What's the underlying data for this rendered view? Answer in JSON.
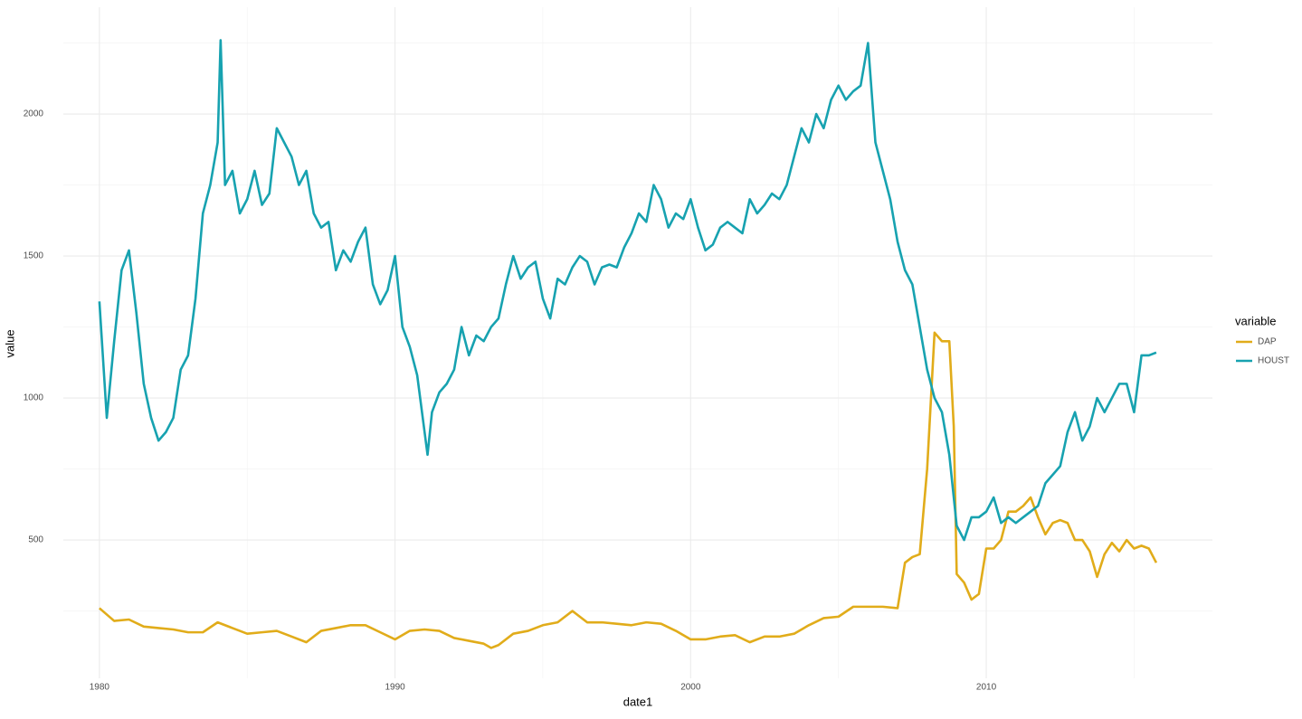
{
  "chart_data": {
    "type": "line",
    "x_label": "date1",
    "y_label": "value",
    "legend_title": "variable",
    "xlim": [
      1978.78,
      2017.65
    ],
    "ylim": [
      13,
      2376
    ],
    "xticks": [
      1980,
      1990,
      2000,
      2010
    ],
    "yticks": [
      500,
      1000,
      1500,
      2000
    ],
    "xminor": [
      1985,
      1995,
      2005,
      2015
    ],
    "yminor": [
      250,
      750,
      1250,
      1750,
      2250
    ],
    "grid": true,
    "legend": "right",
    "series": [
      {
        "name": "DAP",
        "color": "#e1ac1a",
        "x": [
          1980,
          1980.5,
          1981,
          1981.5,
          1982,
          1982.5,
          1983,
          1983.5,
          1984,
          1984.5,
          1985,
          1985.5,
          1986,
          1986.5,
          1987,
          1987.5,
          1988,
          1988.5,
          1989,
          1989.5,
          1990,
          1990.5,
          1991,
          1991.5,
          1992,
          1992.5,
          1993,
          1993.25,
          1993.5,
          1994,
          1994.5,
          1995,
          1995.5,
          1996,
          1996.5,
          1997,
          1997.5,
          1998,
          1998.5,
          1999,
          1999.5,
          2000,
          2000.5,
          2001,
          2001.5,
          2002,
          2002.5,
          2003,
          2003.5,
          2004,
          2004.5,
          2005,
          2005.5,
          2006,
          2006.5,
          2007,
          2007.25,
          2007.5,
          2007.75,
          2008,
          2008.25,
          2008.5,
          2008.75,
          2008.9,
          2009,
          2009.25,
          2009.5,
          2009.75,
          2010,
          2010.25,
          2010.5,
          2010.75,
          2011,
          2011.25,
          2011.5,
          2011.75,
          2012,
          2012.25,
          2012.5,
          2012.75,
          2013,
          2013.25,
          2013.5,
          2013.75,
          2014,
          2014.25,
          2014.5,
          2014.75,
          2015,
          2015.25,
          2015.5,
          2015.75
        ],
        "values": [
          260,
          215,
          220,
          195,
          190,
          185,
          175,
          175,
          210,
          190,
          170,
          175,
          180,
          160,
          140,
          180,
          190,
          200,
          200,
          175,
          150,
          180,
          185,
          180,
          155,
          145,
          135,
          120,
          130,
          170,
          180,
          200,
          210,
          250,
          210,
          210,
          205,
          200,
          210,
          205,
          180,
          150,
          150,
          160,
          165,
          140,
          160,
          160,
          170,
          200,
          225,
          230,
          265,
          265,
          265,
          260,
          420,
          440,
          450,
          750,
          1230,
          1200,
          1200,
          900,
          380,
          350,
          290,
          310,
          470,
          470,
          500,
          600,
          600,
          620,
          650,
          580,
          520,
          560,
          570,
          560,
          500,
          500,
          460,
          370,
          450,
          490,
          460,
          500,
          470,
          480,
          470,
          420
        ]
      },
      {
        "name": "HOUST",
        "color": "#17a2b0",
        "x": [
          1980,
          1980.25,
          1980.5,
          1980.75,
          1981,
          1981.25,
          1981.5,
          1981.75,
          1982,
          1982.25,
          1982.5,
          1982.75,
          1983,
          1983.25,
          1983.5,
          1983.75,
          1984,
          1984.1,
          1984.25,
          1984.5,
          1984.75,
          1985,
          1985.25,
          1985.5,
          1985.75,
          1986,
          1986.25,
          1986.5,
          1986.75,
          1987,
          1987.25,
          1987.5,
          1987.75,
          1988,
          1988.25,
          1988.5,
          1988.75,
          1989,
          1989.25,
          1989.5,
          1989.75,
          1990,
          1990.25,
          1990.5,
          1990.75,
          1991.1,
          1991.25,
          1991.5,
          1991.75,
          1992,
          1992.25,
          1992.5,
          1992.75,
          1993,
          1993.25,
          1993.5,
          1993.75,
          1994,
          1994.25,
          1994.5,
          1994.75,
          1995,
          1995.25,
          1995.5,
          1995.75,
          1996,
          1996.25,
          1996.5,
          1996.75,
          1997,
          1997.25,
          1997.5,
          1997.75,
          1998,
          1998.25,
          1998.5,
          1998.75,
          1999,
          1999.25,
          1999.5,
          1999.75,
          2000,
          2000.25,
          2000.5,
          2000.75,
          2001,
          2001.25,
          2001.5,
          2001.75,
          2002,
          2002.25,
          2002.5,
          2002.75,
          2003,
          2003.25,
          2003.5,
          2003.75,
          2004,
          2004.25,
          2004.5,
          2004.75,
          2005,
          2005.25,
          2005.5,
          2005.75,
          2006,
          2006.25,
          2006.5,
          2006.75,
          2007,
          2007.25,
          2007.5,
          2007.75,
          2008,
          2008.25,
          2008.5,
          2008.75,
          2009,
          2009.25,
          2009.5,
          2009.75,
          2010,
          2010.25,
          2010.5,
          2010.75,
          2011,
          2011.25,
          2011.5,
          2011.75,
          2012,
          2012.25,
          2012.5,
          2012.75,
          2013,
          2013.25,
          2013.5,
          2013.75,
          2014,
          2014.25,
          2014.5,
          2014.75,
          2015,
          2015.25,
          2015.5,
          2015.75
        ],
        "values": [
          1340,
          930,
          1200,
          1450,
          1520,
          1300,
          1050,
          930,
          850,
          880,
          930,
          1100,
          1150,
          1350,
          1650,
          1750,
          1900,
          2260,
          1750,
          1800,
          1650,
          1700,
          1800,
          1680,
          1720,
          1950,
          1900,
          1850,
          1750,
          1800,
          1650,
          1600,
          1620,
          1450,
          1520,
          1480,
          1550,
          1600,
          1400,
          1330,
          1380,
          1500,
          1250,
          1180,
          1080,
          800,
          950,
          1020,
          1050,
          1100,
          1250,
          1150,
          1220,
          1200,
          1250,
          1280,
          1400,
          1500,
          1420,
          1460,
          1480,
          1350,
          1280,
          1420,
          1400,
          1460,
          1500,
          1480,
          1400,
          1460,
          1470,
          1460,
          1530,
          1580,
          1650,
          1620,
          1750,
          1700,
          1600,
          1650,
          1630,
          1700,
          1600,
          1520,
          1540,
          1600,
          1620,
          1600,
          1580,
          1700,
          1650,
          1680,
          1720,
          1700,
          1750,
          1850,
          1950,
          1900,
          2000,
          1950,
          2050,
          2100,
          2050,
          2080,
          2100,
          2250,
          1900,
          1800,
          1700,
          1550,
          1450,
          1400,
          1250,
          1100,
          1000,
          950,
          800,
          550,
          500,
          580,
          580,
          600,
          650,
          560,
          580,
          560,
          580,
          600,
          620,
          700,
          730,
          760,
          880,
          950,
          850,
          900,
          1000,
          950,
          1000,
          1050,
          1050,
          950,
          1150,
          1150,
          1160
        ]
      }
    ]
  }
}
